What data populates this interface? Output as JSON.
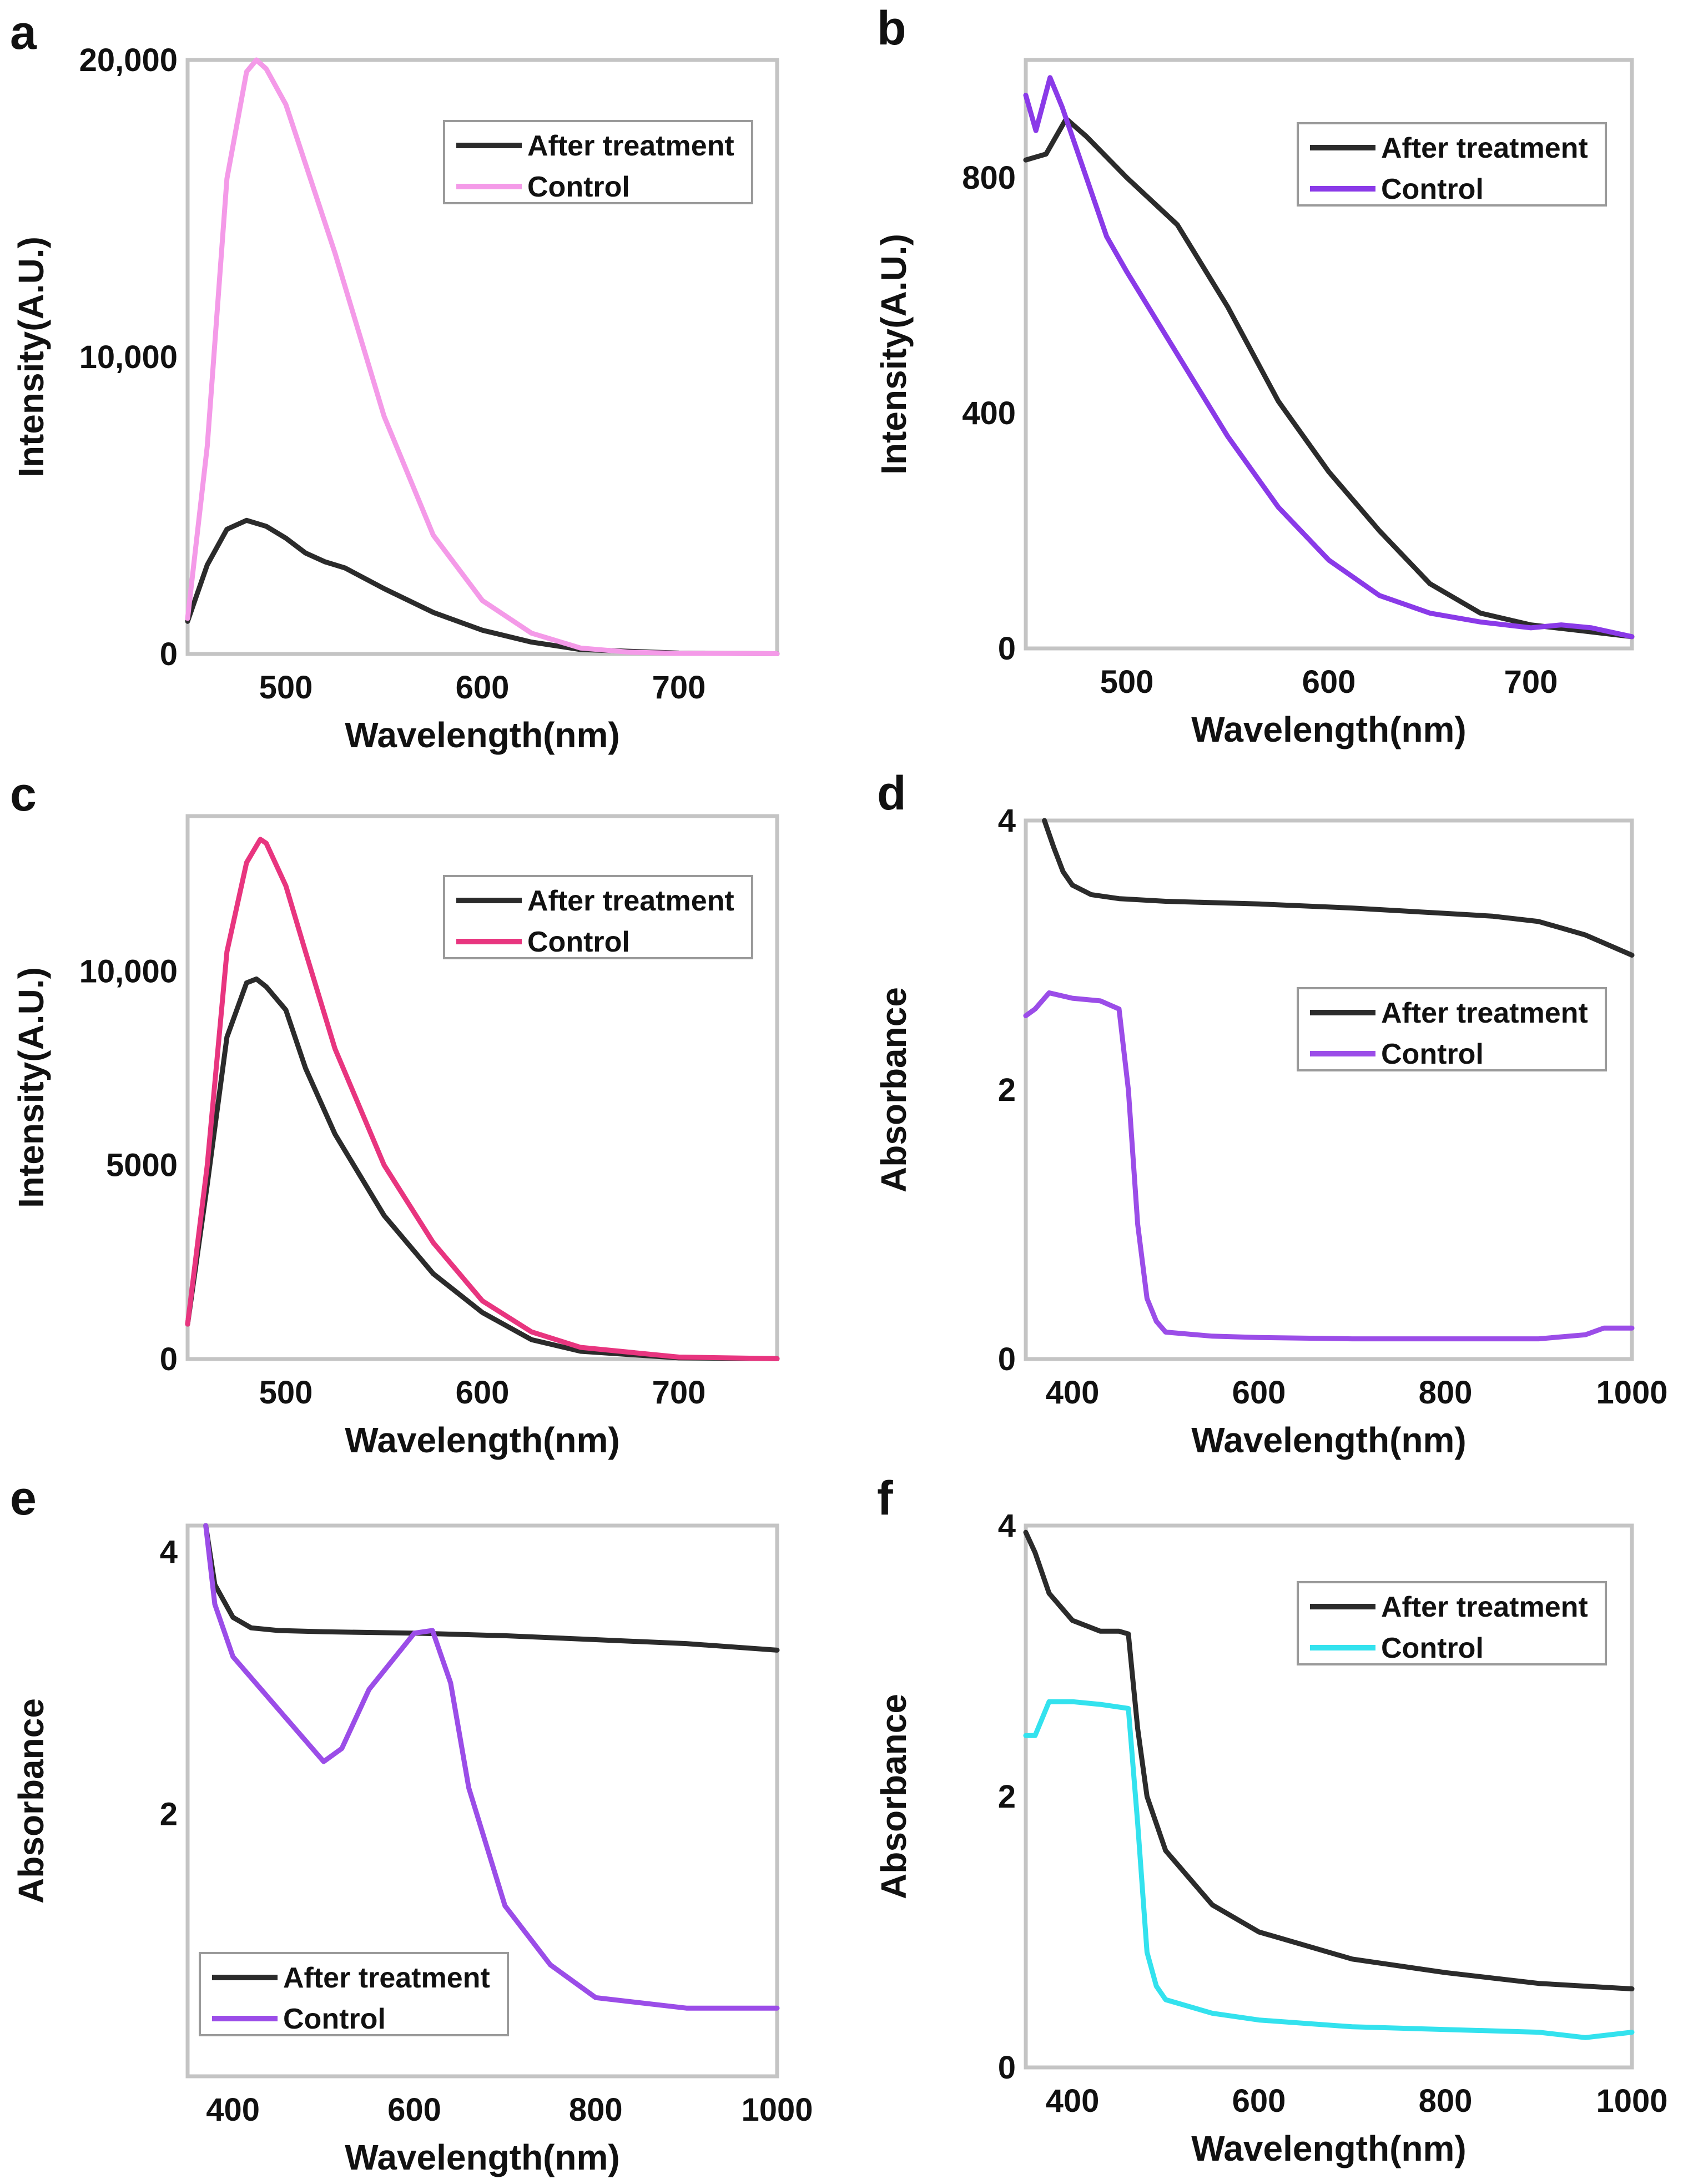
{
  "figure": {
    "legend_after": "After treatment",
    "legend_control": "Control",
    "xlabel": "Wavelength(nm)"
  },
  "chart_data": [
    {
      "panel": "a",
      "type": "line",
      "title": "",
      "xlabel": "Wavelength(nm)",
      "ylabel": "Intensity(A.U.)",
      "xlim": [
        450,
        750
      ],
      "ylim": [
        0,
        20000
      ],
      "x_ticks": [
        500,
        600,
        700
      ],
      "x_tick_labels": [
        "500",
        "600",
        "700"
      ],
      "y_ticks": [
        0,
        10000,
        20000
      ],
      "y_tick_labels": [
        "0",
        "10,000",
        "20,000"
      ],
      "legend_position": "top-right",
      "series": [
        {
          "name": "After treatment",
          "color": "#2b2b2b",
          "x": [
            450,
            460,
            470,
            480,
            490,
            500,
            510,
            520,
            530,
            550,
            575,
            600,
            625,
            650,
            700,
            750
          ],
          "y": [
            1100,
            3000,
            4200,
            4500,
            4300,
            3900,
            3400,
            3100,
            2900,
            2200,
            1400,
            800,
            400,
            150,
            30,
            10
          ]
        },
        {
          "name": "Control",
          "color": "#f49ae8",
          "x": [
            450,
            460,
            470,
            480,
            485,
            490,
            500,
            510,
            525,
            550,
            575,
            600,
            625,
            650,
            675,
            700,
            750
          ],
          "y": [
            1200,
            7000,
            16000,
            19600,
            20000,
            19700,
            18500,
            16500,
            13500,
            8000,
            4000,
            1800,
            700,
            200,
            60,
            20,
            10
          ]
        }
      ]
    },
    {
      "panel": "b",
      "type": "line",
      "title": "",
      "xlabel": "Wavelength(nm)",
      "ylabel": "Intensity(A.U.)",
      "xlim": [
        450,
        750
      ],
      "ylim": [
        0,
        1000
      ],
      "x_ticks": [
        500,
        600,
        700
      ],
      "x_tick_labels": [
        "500",
        "600",
        "700"
      ],
      "y_ticks": [
        0,
        400,
        800
      ],
      "y_tick_labels": [
        "0",
        "400",
        "800"
      ],
      "legend_position": "top-right",
      "series": [
        {
          "name": "After treatment",
          "color": "#2b2b2b",
          "x": [
            450,
            460,
            470,
            480,
            500,
            525,
            550,
            575,
            600,
            625,
            650,
            675,
            700,
            725,
            750
          ],
          "y": [
            830,
            840,
            900,
            870,
            800,
            720,
            580,
            420,
            300,
            200,
            110,
            60,
            40,
            30,
            20
          ]
        },
        {
          "name": "Control",
          "color": "#8a3ae8",
          "x": [
            450,
            455,
            462,
            468,
            475,
            490,
            500,
            525,
            550,
            575,
            600,
            625,
            650,
            675,
            700,
            715,
            730,
            750
          ],
          "y": [
            940,
            880,
            970,
            920,
            850,
            700,
            640,
            500,
            360,
            240,
            150,
            90,
            60,
            45,
            35,
            40,
            35,
            20
          ]
        }
      ]
    },
    {
      "panel": "c",
      "type": "line",
      "title": "",
      "xlabel": "Wavelength(nm)",
      "ylabel": "Intensity(A.U.)",
      "xlim": [
        450,
        750
      ],
      "ylim": [
        0,
        14000
      ],
      "x_ticks": [
        500,
        600,
        700
      ],
      "x_tick_labels": [
        "500",
        "600",
        "700"
      ],
      "y_ticks": [
        0,
        5000,
        10000
      ],
      "y_tick_labels": [
        "0",
        "5000",
        "10,000"
      ],
      "legend_position": "top-right",
      "series": [
        {
          "name": "After treatment",
          "color": "#2b2b2b",
          "x": [
            450,
            460,
            470,
            480,
            485,
            490,
            500,
            510,
            525,
            550,
            575,
            600,
            625,
            650,
            700,
            750
          ],
          "y": [
            900,
            4500,
            8300,
            9700,
            9800,
            9600,
            9000,
            7500,
            5800,
            3700,
            2200,
            1200,
            500,
            200,
            30,
            10
          ]
        },
        {
          "name": "Control",
          "color": "#e8357f",
          "x": [
            450,
            460,
            470,
            480,
            487,
            490,
            500,
            510,
            525,
            550,
            575,
            600,
            625,
            650,
            700,
            750
          ],
          "y": [
            900,
            5000,
            10500,
            12800,
            13400,
            13300,
            12200,
            10500,
            8000,
            5000,
            3000,
            1500,
            700,
            300,
            50,
            10
          ]
        }
      ]
    },
    {
      "panel": "d",
      "type": "line",
      "title": "",
      "xlabel": "Wavelength(nm)",
      "ylabel": "Absorbance",
      "xlim": [
        350,
        1000
      ],
      "ylim": [
        0,
        4
      ],
      "x_ticks": [
        400,
        600,
        800,
        1000
      ],
      "x_tick_labels": [
        "400",
        "600",
        "800",
        "1000"
      ],
      "y_ticks": [
        0,
        2,
        4
      ],
      "y_tick_labels": [
        "0",
        "2",
        "4"
      ],
      "legend_position": "center-right",
      "series": [
        {
          "name": "After treatment",
          "color": "#2b2b2b",
          "x": [
            370,
            380,
            390,
            400,
            420,
            450,
            500,
            600,
            700,
            800,
            850,
            900,
            950,
            1000
          ],
          "y": [
            4.0,
            3.8,
            3.62,
            3.52,
            3.45,
            3.42,
            3.4,
            3.38,
            3.35,
            3.31,
            3.29,
            3.25,
            3.15,
            3.0
          ]
        },
        {
          "name": "Control",
          "color": "#9b4de8",
          "x": [
            350,
            360,
            375,
            400,
            430,
            450,
            460,
            470,
            480,
            490,
            500,
            550,
            600,
            700,
            800,
            900,
            950,
            970,
            1000
          ],
          "y": [
            2.55,
            2.6,
            2.72,
            2.68,
            2.66,
            2.6,
            2.0,
            1.0,
            0.45,
            0.28,
            0.2,
            0.17,
            0.16,
            0.15,
            0.15,
            0.15,
            0.18,
            0.23,
            0.23
          ]
        }
      ]
    },
    {
      "panel": "e",
      "type": "line",
      "title": "",
      "xlabel": "Wavelength(nm)",
      "ylabel": "Absorbance",
      "xlim": [
        350,
        1000
      ],
      "ylim": [
        0,
        4.2
      ],
      "x_ticks": [
        400,
        600,
        800,
        1000
      ],
      "x_tick_labels": [
        "400",
        "600",
        "800",
        "1000"
      ],
      "y_ticks": [
        2,
        4
      ],
      "y_tick_labels": [
        "2",
        "4"
      ],
      "legend_position": "bottom-left",
      "series": [
        {
          "name": "After treatment",
          "color": "#2b2b2b",
          "x": [
            370,
            380,
            400,
            420,
            450,
            500,
            600,
            700,
            800,
            900,
            1000
          ],
          "y": [
            4.2,
            3.75,
            3.5,
            3.42,
            3.4,
            3.39,
            3.38,
            3.36,
            3.33,
            3.3,
            3.25
          ]
        },
        {
          "name": "Control",
          "color": "#9b4de8",
          "x": [
            370,
            380,
            400,
            450,
            500,
            520,
            550,
            600,
            620,
            640,
            660,
            700,
            750,
            800,
            900,
            1000
          ],
          "y": [
            4.2,
            3.6,
            3.2,
            2.8,
            2.4,
            2.5,
            2.95,
            3.38,
            3.4,
            3.0,
            2.2,
            1.3,
            0.85,
            0.6,
            0.52,
            0.52
          ]
        }
      ]
    },
    {
      "panel": "f",
      "type": "line",
      "title": "",
      "xlabel": "Wavelength(nm)",
      "ylabel": "Absorbance",
      "xlim": [
        350,
        1000
      ],
      "ylim": [
        0,
        4
      ],
      "x_ticks": [
        400,
        600,
        800,
        1000
      ],
      "x_tick_labels": [
        "400",
        "600",
        "800",
        "1000"
      ],
      "y_ticks": [
        0,
        2,
        4
      ],
      "y_tick_labels": [
        "0",
        "2",
        "4"
      ],
      "legend_position": "top-right",
      "series": [
        {
          "name": "After treatment",
          "color": "#2b2b2b",
          "x": [
            350,
            360,
            375,
            400,
            430,
            450,
            460,
            470,
            480,
            500,
            550,
            600,
            700,
            800,
            900,
            1000
          ],
          "y": [
            3.95,
            3.8,
            3.5,
            3.3,
            3.22,
            3.22,
            3.2,
            2.5,
            2.0,
            1.6,
            1.2,
            1.0,
            0.8,
            0.7,
            0.62,
            0.58
          ]
        },
        {
          "name": "Control",
          "color": "#33e2ee",
          "x": [
            350,
            360,
            375,
            400,
            430,
            460,
            470,
            480,
            490,
            500,
            550,
            600,
            700,
            800,
            900,
            950,
            1000
          ],
          "y": [
            2.45,
            2.45,
            2.7,
            2.7,
            2.68,
            2.65,
            1.8,
            0.85,
            0.6,
            0.5,
            0.4,
            0.35,
            0.3,
            0.28,
            0.26,
            0.22,
            0.26
          ]
        }
      ]
    }
  ]
}
